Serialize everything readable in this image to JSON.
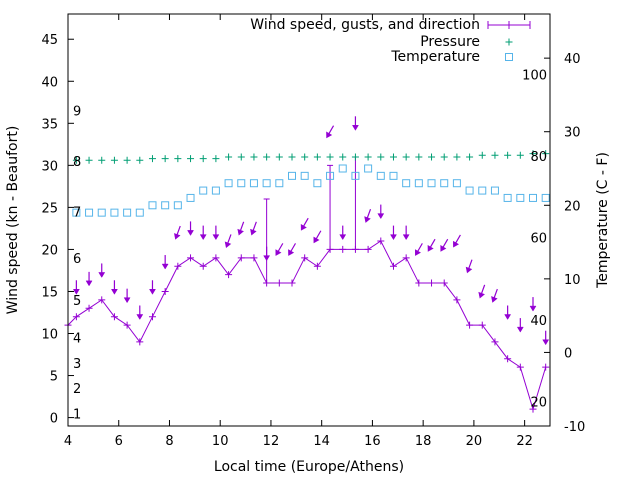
{
  "chart_data": {
    "type": "line",
    "title": "",
    "xlabel": "Local time (Europe/Athens)",
    "ylabel": "Wind speed (kn - Beaufort)",
    "y2label": "Temperature (C - F)",
    "xlim": [
      4.0,
      23.0
    ],
    "ylim": [
      -1.0,
      48.0
    ],
    "y2lim": [
      -10.0,
      46.0
    ],
    "grid": false,
    "legend_position": "top-right",
    "x_ticks": [
      4,
      6,
      8,
      10,
      12,
      14,
      16,
      18,
      20,
      22
    ],
    "x_tick_labels": [
      "4",
      "6",
      "8",
      "10",
      "12",
      "14",
      "16",
      "18",
      "20",
      "22"
    ],
    "y_ticks": [
      0,
      5,
      10,
      15,
      20,
      25,
      30,
      35,
      40,
      45
    ],
    "y_tick_labels": [
      "0",
      "5",
      "10",
      "15",
      "20",
      "25",
      "30",
      "35",
      "40",
      "45"
    ],
    "y2_ticks": [
      -10,
      0,
      10,
      20,
      30,
      40
    ],
    "y2_tick_labels": [
      "-10",
      "0",
      "10",
      "20",
      "30",
      "40"
    ],
    "beaufort_labels": [
      {
        "text": "1",
        "wind": 0.5
      },
      {
        "text": "2",
        "wind": 3.5
      },
      {
        "text": "3",
        "wind": 6.5
      },
      {
        "text": "4",
        "wind": 9.5
      },
      {
        "text": "5",
        "wind": 14.0
      },
      {
        "text": "6",
        "wind": 19.0
      },
      {
        "text": "7",
        "wind": 24.5
      },
      {
        "text": "8",
        "wind": 30.5
      },
      {
        "text": "9",
        "wind": 36.5
      }
    ],
    "fahrenheit_labels": [
      {
        "text": "20",
        "temp": -6.7
      },
      {
        "text": "40",
        "temp": 4.4
      },
      {
        "text": "60",
        "temp": 15.6
      },
      {
        "text": "80",
        "temp": 26.7
      },
      {
        "text": "100",
        "temp": 37.8
      }
    ],
    "series": [
      {
        "name": "Wind speed, gusts, and direction",
        "color": "#9400D3",
        "marker": "plus",
        "x": [
          4,
          4.33,
          4.83,
          5.33,
          5.83,
          6.33,
          6.83,
          7.33,
          7.83,
          8.33,
          8.83,
          9.33,
          9.83,
          10.33,
          10.83,
          11.33,
          11.83,
          12.33,
          12.83,
          13.33,
          13.83,
          14.33,
          14.83,
          15.33,
          15.83,
          16.33,
          16.83,
          17.33,
          17.83,
          18.33,
          18.83,
          19.33,
          19.83,
          20.33,
          20.83,
          21.33,
          21.83,
          22.33,
          22.83
        ],
        "values": [
          11,
          12,
          13,
          14,
          12,
          11,
          9,
          12,
          15,
          18,
          19,
          18,
          19,
          17,
          19,
          19,
          16,
          16,
          16,
          19,
          18,
          20,
          20,
          20,
          20,
          21,
          18,
          19,
          16,
          16,
          16,
          14,
          11,
          11,
          9,
          7,
          6,
          1,
          6
        ],
        "gusts": [
          {
            "x": 11.83,
            "value": 26
          },
          {
            "x": 14.33,
            "value": 30
          },
          {
            "x": 15.33,
            "value": 31
          }
        ]
      },
      {
        "name": "Pressure",
        "color": "#009E73",
        "marker": "plus",
        "x": [
          4.33,
          4.83,
          5.33,
          5.83,
          6.33,
          6.83,
          7.33,
          7.83,
          8.33,
          8.83,
          9.33,
          9.83,
          10.33,
          10.83,
          11.33,
          11.83,
          12.33,
          12.83,
          13.33,
          13.83,
          14.33,
          14.83,
          15.33,
          15.83,
          16.33,
          16.83,
          17.33,
          17.83,
          18.33,
          18.83,
          19.33,
          19.83,
          20.33,
          20.83,
          21.33,
          21.83,
          22.33,
          22.83
        ],
        "values": [
          30.6,
          30.6,
          30.6,
          30.6,
          30.6,
          30.6,
          30.8,
          30.8,
          30.8,
          30.8,
          30.8,
          30.8,
          31.0,
          31.0,
          31.0,
          31.0,
          31.0,
          31.0,
          31.0,
          31.0,
          31.0,
          31.0,
          31.0,
          31.0,
          31.0,
          31.0,
          31.0,
          31.0,
          31.0,
          31.0,
          31.0,
          31.0,
          31.2,
          31.2,
          31.2,
          31.2,
          31.4,
          31.4
        ]
      },
      {
        "name": "Temperature",
        "color": "#56B4E9",
        "marker": "square",
        "x": [
          4.33,
          4.83,
          5.33,
          5.83,
          6.33,
          6.83,
          7.33,
          7.83,
          8.33,
          8.83,
          9.33,
          9.83,
          10.33,
          10.83,
          11.33,
          11.83,
          12.33,
          12.83,
          13.33,
          13.83,
          14.33,
          14.83,
          15.33,
          15.83,
          16.33,
          16.83,
          17.33,
          17.83,
          18.33,
          18.83,
          19.33,
          19.83,
          20.33,
          20.83,
          21.33,
          21.83,
          22.33,
          22.83
        ],
        "values": [
          19,
          19,
          19,
          19,
          19,
          19,
          20,
          20,
          20,
          21,
          22,
          22,
          23,
          23,
          23,
          23,
          23,
          24,
          24,
          23,
          24,
          25,
          24,
          25,
          24,
          24,
          23,
          23,
          23,
          23,
          23,
          22,
          22,
          22,
          21,
          21,
          21,
          21
        ]
      }
    ],
    "wind_direction": {
      "x": [
        4.33,
        4.83,
        5.33,
        5.83,
        6.33,
        6.83,
        7.33,
        7.83,
        8.33,
        8.83,
        9.33,
        9.83,
        10.33,
        10.83,
        11.33,
        11.83,
        12.33,
        12.83,
        13.33,
        13.83,
        14.33,
        14.83,
        15.33,
        15.83,
        16.33,
        16.83,
        17.33,
        17.83,
        18.33,
        18.83,
        19.33,
        19.83,
        20.33,
        20.83,
        21.33,
        21.83,
        22.33,
        22.83
      ],
      "level": [
        15.5,
        16.5,
        17.5,
        15.5,
        14.5,
        12.5,
        15.5,
        18.5,
        22.0,
        22.5,
        22.0,
        22.0,
        21.0,
        22.5,
        22.5,
        19.5,
        20.0,
        20.0,
        23.0,
        21.5,
        34.0,
        22.0,
        35.0,
        24.0,
        24.5,
        22.0,
        22.0,
        20.0,
        20.5,
        20.5,
        21.0,
        18.0,
        15.0,
        14.5,
        12.5,
        11.0,
        13.5,
        9.5
      ],
      "bearing_deg": [
        0,
        0,
        0,
        0,
        0,
        0,
        0,
        0,
        20,
        0,
        0,
        0,
        20,
        20,
        20,
        0,
        30,
        30,
        30,
        30,
        30,
        0,
        0,
        20,
        0,
        0,
        0,
        30,
        30,
        30,
        30,
        20,
        20,
        20,
        0,
        0,
        0,
        0
      ]
    }
  }
}
